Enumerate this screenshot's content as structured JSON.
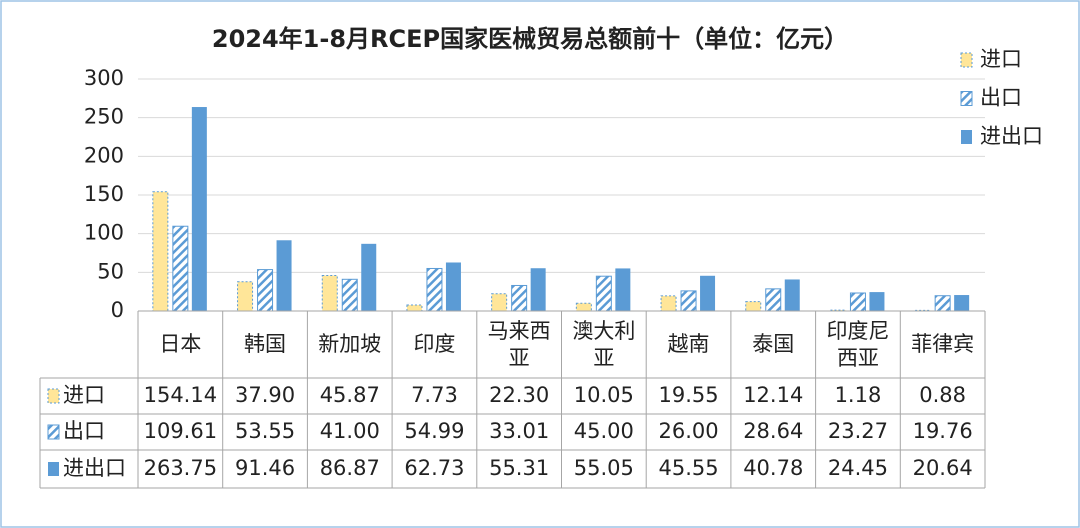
{
  "chart_data": {
    "type": "bar",
    "title": "2024年1-8月RCEP国家医械贸易总额前十（单位：亿元）",
    "categories": [
      "日本",
      "韩国",
      "新加坡",
      "印度",
      "马来西亚",
      "澳大利亚",
      "越南",
      "泰国",
      "印度尼西亚",
      "菲律宾"
    ],
    "series": [
      {
        "name": "进口",
        "color": "#ffe699",
        "values": [
          154.14,
          37.9,
          45.87,
          7.73,
          22.3,
          10.05,
          19.55,
          12.14,
          1.18,
          0.88
        ],
        "value_labels": [
          "154.14",
          "37.90",
          "45.87",
          "7.73",
          "22.30",
          "10.05",
          "19.55",
          "12.14",
          "1.18",
          "0.88"
        ]
      },
      {
        "name": "出口",
        "color": "#5b9bd5",
        "values": [
          109.61,
          53.55,
          41.0,
          54.99,
          33.01,
          45.0,
          26.0,
          28.64,
          23.27,
          19.76
        ],
        "value_labels": [
          "109.61",
          "53.55",
          "41.00",
          "54.99",
          "33.01",
          "45.00",
          "26.00",
          "28.64",
          "23.27",
          "19.76"
        ]
      },
      {
        "name": "进出口",
        "color": "#5b9bd5",
        "values": [
          263.75,
          91.46,
          86.87,
          62.73,
          55.31,
          55.05,
          45.55,
          40.78,
          24.45,
          20.64
        ],
        "value_labels": [
          "263.75",
          "91.46",
          "86.87",
          "62.73",
          "55.31",
          "55.05",
          "45.55",
          "40.78",
          "24.45",
          "20.64"
        ]
      }
    ],
    "ylim": [
      0,
      300
    ],
    "yticks": [
      0,
      50,
      100,
      150,
      200,
      250,
      300
    ],
    "grid": true,
    "legend": "top-right"
  }
}
